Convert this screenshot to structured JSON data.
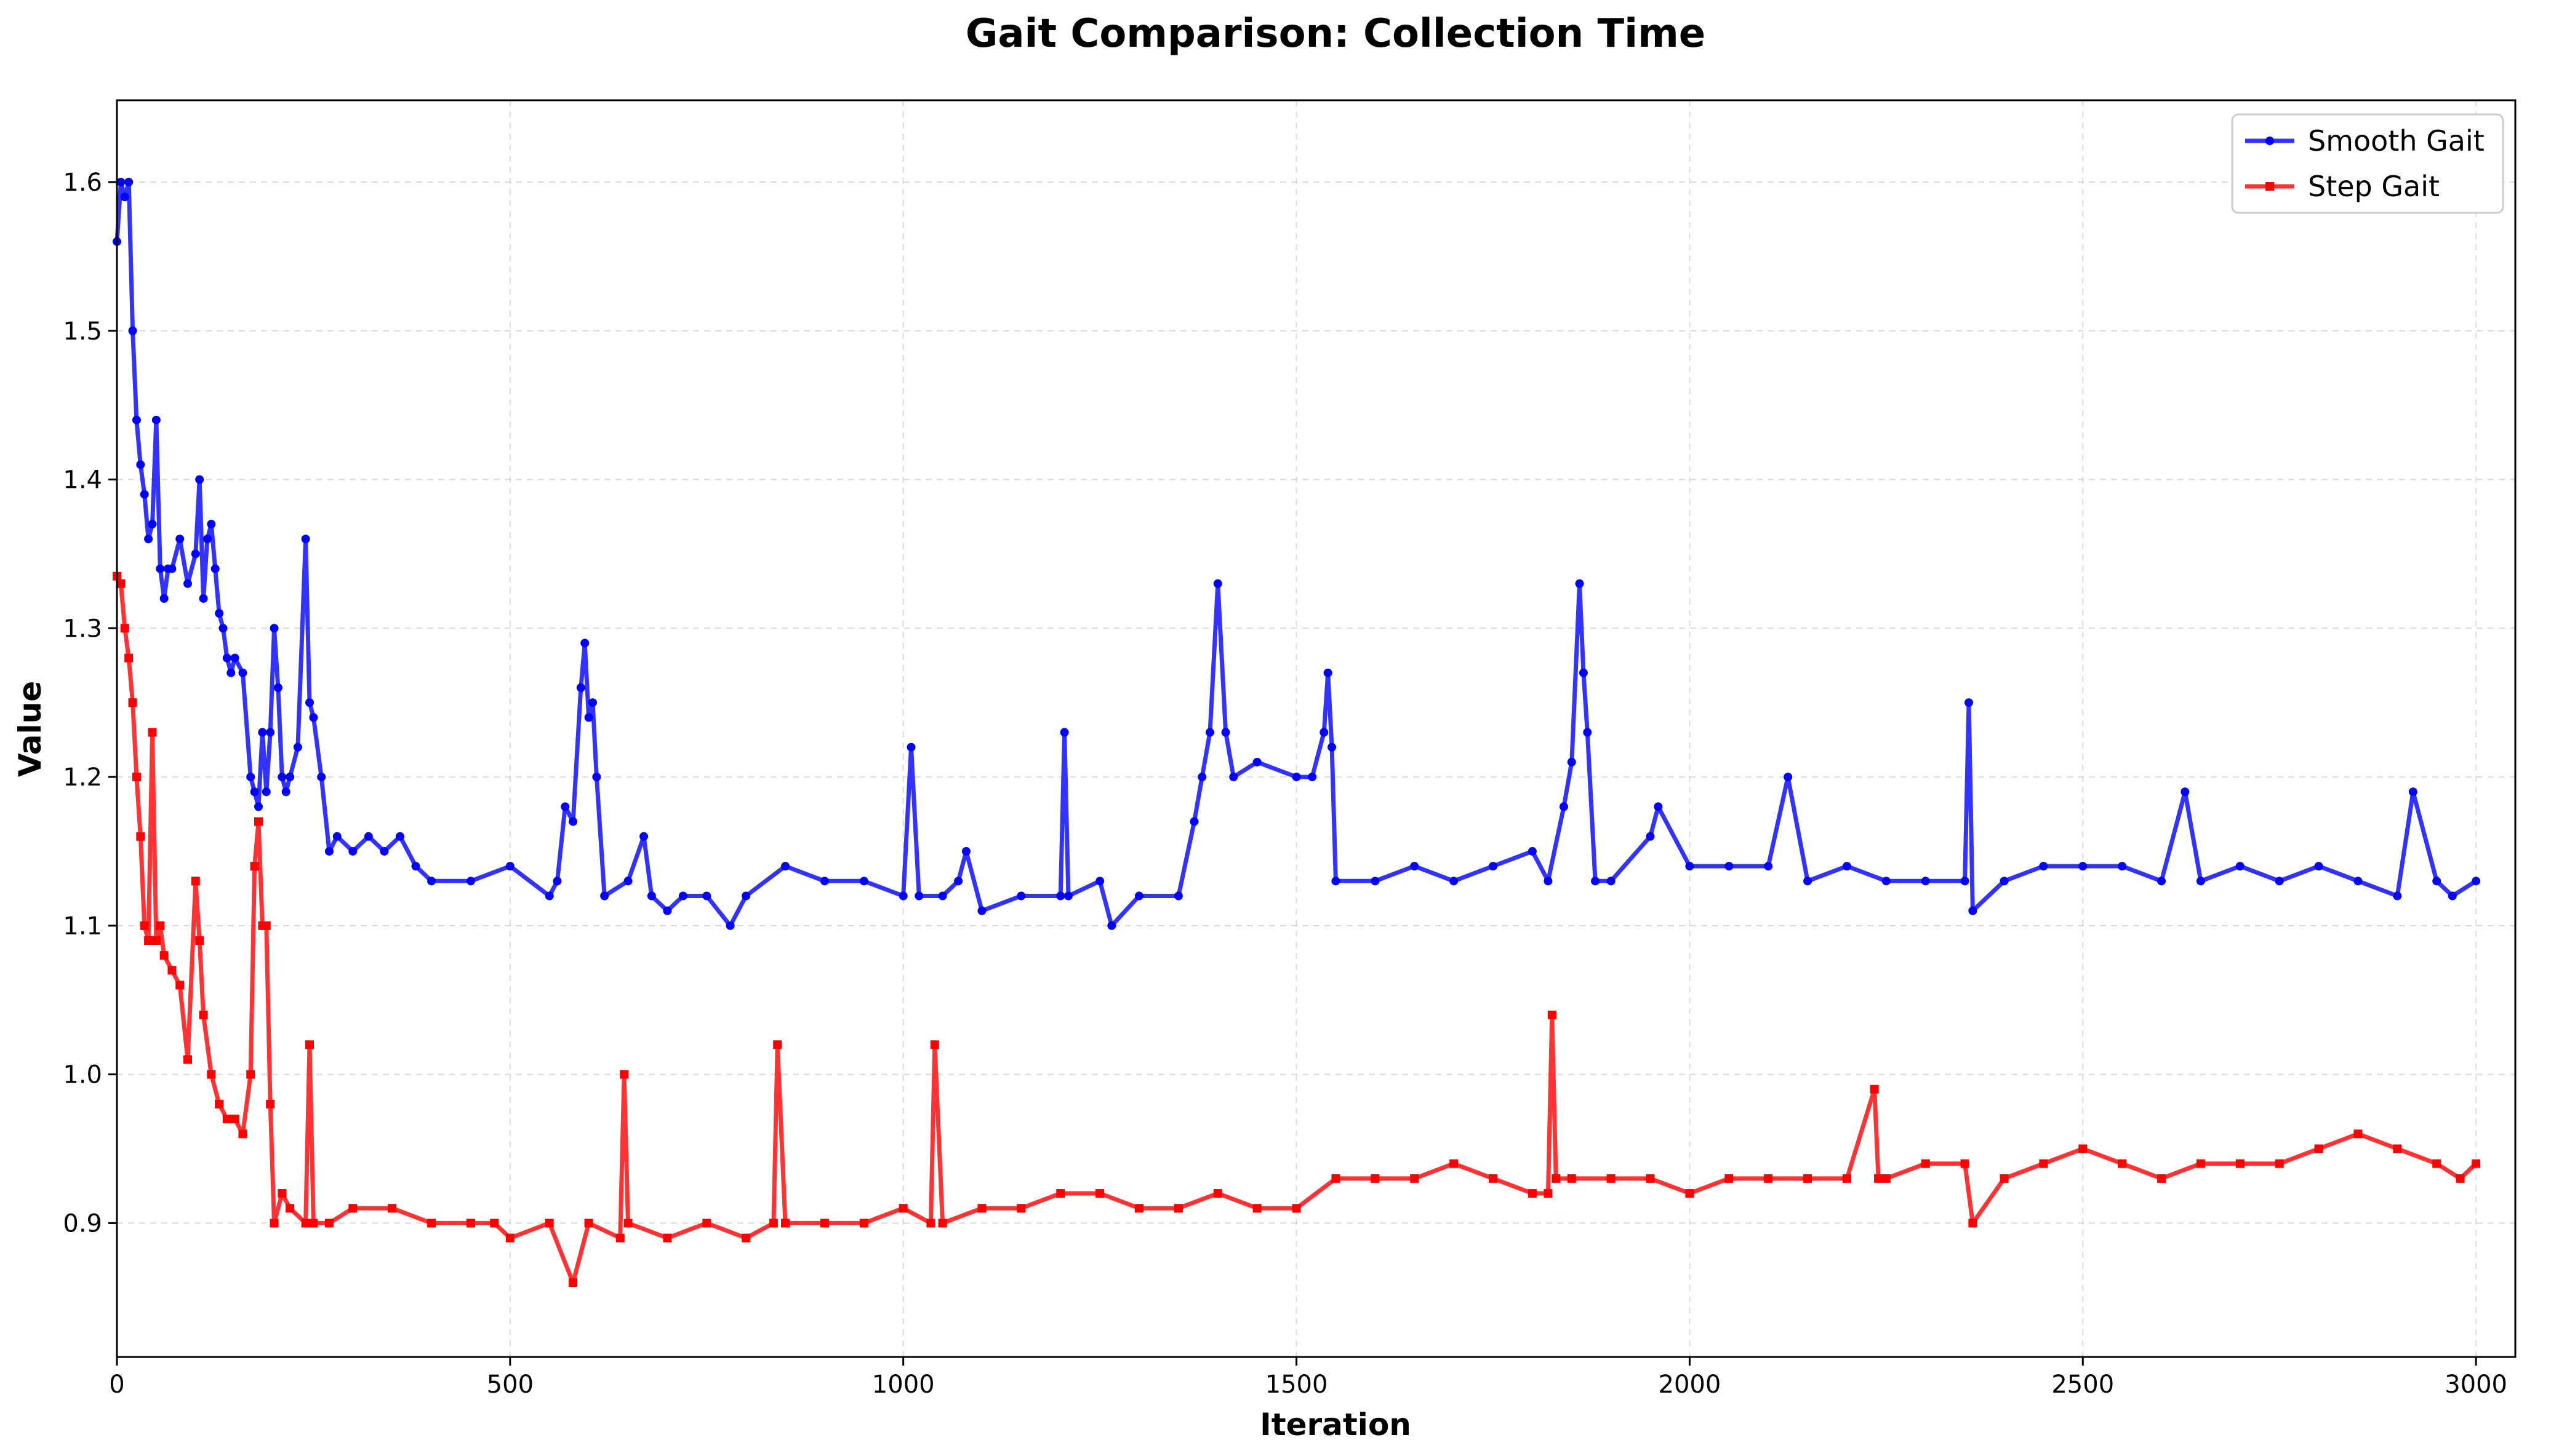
{
  "chart_data": {
    "type": "line",
    "title": "Gait Comparison: Collection Time",
    "xlabel": "Iteration",
    "ylabel": "Value",
    "xlim": [
      0,
      3050
    ],
    "ylim": [
      0.81,
      1.655
    ],
    "xticks": [
      0,
      500,
      1000,
      1500,
      2000,
      2500,
      3000
    ],
    "yticks": [
      0.9,
      1.0,
      1.1,
      1.2,
      1.3,
      1.4,
      1.5,
      1.6
    ],
    "xtick_labels": [
      "0",
      "500",
      "1000",
      "1500",
      "2000",
      "2500",
      "3000"
    ],
    "ytick_labels": [
      "0.9",
      "1.0",
      "1.1",
      "1.2",
      "1.3",
      "1.4",
      "1.5",
      "1.6"
    ],
    "grid": true,
    "legend_position": "top-right",
    "series": [
      {
        "name": "Smooth Gait",
        "color": "#0000ff",
        "marker": "circle",
        "x": [
          0,
          5,
          10,
          15,
          20,
          25,
          30,
          35,
          40,
          45,
          50,
          55,
          60,
          65,
          70,
          80,
          90,
          100,
          105,
          110,
          115,
          120,
          125,
          130,
          135,
          140,
          145,
          150,
          160,
          170,
          175,
          180,
          185,
          190,
          195,
          200,
          205,
          210,
          215,
          220,
          230,
          240,
          245,
          250,
          260,
          270,
          280,
          300,
          320,
          340,
          360,
          380,
          400,
          450,
          500,
          550,
          560,
          570,
          580,
          590,
          595,
          600,
          605,
          610,
          620,
          650,
          670,
          680,
          700,
          720,
          750,
          780,
          800,
          850,
          900,
          950,
          1000,
          1010,
          1020,
          1050,
          1070,
          1080,
          1100,
          1150,
          1200,
          1205,
          1210,
          1250,
          1265,
          1300,
          1350,
          1370,
          1380,
          1390,
          1400,
          1410,
          1420,
          1450,
          1500,
          1520,
          1535,
          1540,
          1545,
          1550,
          1600,
          1650,
          1700,
          1750,
          1800,
          1820,
          1840,
          1850,
          1860,
          1865,
          1870,
          1880,
          1900,
          1950,
          1960,
          2000,
          2050,
          2100,
          2125,
          2150,
          2200,
          2250,
          2300,
          2350,
          2355,
          2360,
          2400,
          2450,
          2500,
          2550,
          2600,
          2630,
          2650,
          2700,
          2750,
          2800,
          2850,
          2900,
          2920,
          2950,
          2970,
          3000
        ],
        "values": [
          1.56,
          1.6,
          1.59,
          1.6,
          1.5,
          1.44,
          1.41,
          1.39,
          1.36,
          1.37,
          1.44,
          1.34,
          1.32,
          1.34,
          1.34,
          1.36,
          1.33,
          1.35,
          1.4,
          1.32,
          1.36,
          1.37,
          1.34,
          1.31,
          1.3,
          1.28,
          1.27,
          1.28,
          1.27,
          1.2,
          1.19,
          1.18,
          1.23,
          1.19,
          1.23,
          1.3,
          1.26,
          1.2,
          1.19,
          1.2,
          1.22,
          1.36,
          1.25,
          1.24,
          1.2,
          1.15,
          1.16,
          1.15,
          1.16,
          1.15,
          1.16,
          1.14,
          1.13,
          1.13,
          1.14,
          1.12,
          1.13,
          1.18,
          1.17,
          1.26,
          1.29,
          1.24,
          1.25,
          1.2,
          1.12,
          1.13,
          1.16,
          1.12,
          1.11,
          1.12,
          1.12,
          1.1,
          1.12,
          1.14,
          1.13,
          1.13,
          1.12,
          1.22,
          1.12,
          1.12,
          1.13,
          1.15,
          1.11,
          1.12,
          1.12,
          1.23,
          1.12,
          1.13,
          1.1,
          1.12,
          1.12,
          1.17,
          1.2,
          1.23,
          1.33,
          1.23,
          1.2,
          1.21,
          1.2,
          1.2,
          1.23,
          1.27,
          1.22,
          1.13,
          1.13,
          1.14,
          1.13,
          1.14,
          1.15,
          1.13,
          1.18,
          1.21,
          1.33,
          1.27,
          1.23,
          1.13,
          1.13,
          1.16,
          1.18,
          1.14,
          1.14,
          1.14,
          1.2,
          1.13,
          1.14,
          1.13,
          1.13,
          1.13,
          1.25,
          1.11,
          1.13,
          1.14,
          1.14,
          1.14,
          1.13,
          1.19,
          1.13,
          1.14,
          1.13,
          1.14,
          1.13,
          1.12,
          1.19,
          1.13,
          1.12,
          1.13
        ]
      },
      {
        "name": "Step Gait",
        "color": "#ff0000",
        "marker": "square",
        "x": [
          0,
          5,
          10,
          15,
          20,
          25,
          30,
          35,
          40,
          45,
          50,
          55,
          60,
          70,
          80,
          90,
          100,
          105,
          110,
          120,
          130,
          140,
          150,
          160,
          170,
          175,
          180,
          185,
          190,
          195,
          200,
          210,
          220,
          240,
          245,
          250,
          270,
          300,
          350,
          400,
          450,
          480,
          500,
          550,
          580,
          600,
          640,
          645,
          650,
          700,
          750,
          800,
          835,
          840,
          850,
          900,
          950,
          1000,
          1035,
          1040,
          1050,
          1100,
          1150,
          1200,
          1250,
          1300,
          1350,
          1400,
          1450,
          1500,
          1550,
          1600,
          1650,
          1700,
          1750,
          1800,
          1820,
          1825,
          1830,
          1850,
          1900,
          1950,
          2000,
          2050,
          2100,
          2150,
          2200,
          2235,
          2240,
          2250,
          2300,
          2350,
          2360,
          2400,
          2450,
          2500,
          2550,
          2600,
          2650,
          2700,
          2750,
          2800,
          2850,
          2900,
          2950,
          2980,
          3000
        ],
        "values": [
          1.335,
          1.33,
          1.3,
          1.28,
          1.25,
          1.2,
          1.16,
          1.1,
          1.09,
          1.23,
          1.09,
          1.1,
          1.08,
          1.07,
          1.06,
          1.01,
          1.13,
          1.09,
          1.04,
          1.0,
          0.98,
          0.97,
          0.97,
          0.96,
          1.0,
          1.14,
          1.17,
          1.1,
          1.1,
          0.98,
          0.9,
          0.92,
          0.91,
          0.9,
          1.02,
          0.9,
          0.9,
          0.91,
          0.91,
          0.9,
          0.9,
          0.9,
          0.89,
          0.9,
          0.86,
          0.9,
          0.89,
          1.0,
          0.9,
          0.89,
          0.9,
          0.89,
          0.9,
          1.02,
          0.9,
          0.9,
          0.9,
          0.91,
          0.9,
          1.02,
          0.9,
          0.91,
          0.91,
          0.92,
          0.92,
          0.91,
          0.91,
          0.92,
          0.91,
          0.91,
          0.93,
          0.93,
          0.93,
          0.94,
          0.93,
          0.92,
          0.92,
          1.04,
          0.93,
          0.93,
          0.93,
          0.93,
          0.92,
          0.93,
          0.93,
          0.93,
          0.93,
          0.99,
          0.93,
          0.93,
          0.94,
          0.94,
          0.9,
          0.93,
          0.94,
          0.95,
          0.94,
          0.93,
          0.94,
          0.94,
          0.94,
          0.95,
          0.96,
          0.95,
          0.94,
          0.93,
          0.94
        ]
      }
    ]
  }
}
